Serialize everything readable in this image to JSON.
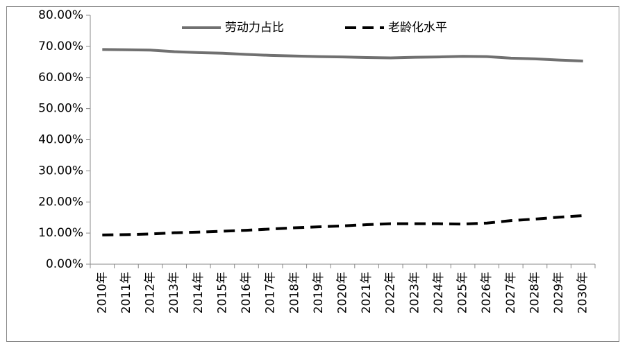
{
  "chart_data": {
    "type": "line",
    "categories": [
      "2010年",
      "2011年",
      "2012年",
      "2013年",
      "2014年",
      "2015年",
      "2016年",
      "2017年",
      "2018年",
      "2019年",
      "2020年",
      "2021年",
      "2022年",
      "2023年",
      "2024年",
      "2025年",
      "2026年",
      "2027年",
      "2028年",
      "2029年",
      "2030年"
    ],
    "series": [
      {
        "name": "劳动力占比",
        "color": "#707070",
        "dash": false,
        "values": [
          69.0,
          68.9,
          68.8,
          68.3,
          68.0,
          67.8,
          67.4,
          67.1,
          66.9,
          66.7,
          66.6,
          66.4,
          66.3,
          66.5,
          66.6,
          66.8,
          66.7,
          66.2,
          66.0,
          65.6,
          65.3
        ]
      },
      {
        "name": "老龄化水平",
        "color": "#000000",
        "dash": true,
        "values": [
          9.4,
          9.5,
          9.7,
          10.1,
          10.3,
          10.6,
          10.9,
          11.3,
          11.7,
          12.0,
          12.3,
          12.7,
          13.0,
          13.0,
          13.0,
          12.9,
          13.2,
          14.0,
          14.5,
          15.1,
          15.6
        ]
      }
    ],
    "ylim": [
      0,
      80
    ],
    "yticks": [
      {
        "value": 0,
        "label": "0.00%"
      },
      {
        "value": 10,
        "label": "10.00%"
      },
      {
        "value": 20,
        "label": "20.00%"
      },
      {
        "value": 30,
        "label": "30.00%"
      },
      {
        "value": 40,
        "label": "40.00%"
      },
      {
        "value": 50,
        "label": "50.00%"
      },
      {
        "value": 60,
        "label": "60.00%"
      },
      {
        "value": 70,
        "label": "70.00%"
      },
      {
        "value": 80,
        "label": "80.00%"
      }
    ],
    "grid": false,
    "legend": "top"
  }
}
